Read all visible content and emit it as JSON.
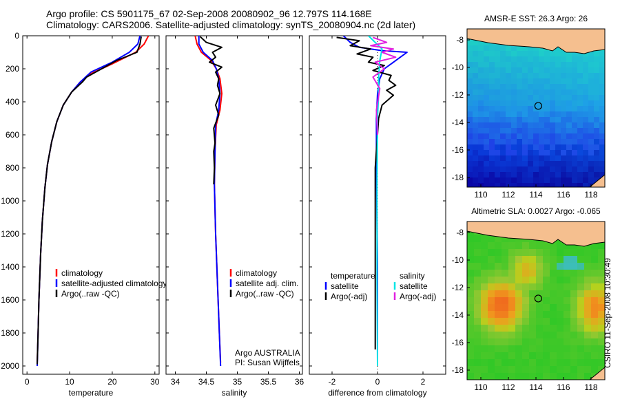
{
  "header": {
    "line1": "Argo profile: CS 5901175_67 02-Sep-2008 20080902_96 12.797S 114.168E",
    "line2": "Climatology: CARS2006. Satellite-adjusted climatology: synTS_20080904.nc (2d later)"
  },
  "colors": {
    "climatology": "#ff0000",
    "satellite": "#0000ff",
    "argo": "#000000",
    "salinity_sat": "#00e5e5",
    "salinity_argo": "#e020e0",
    "land": "#f5bf8f"
  },
  "chart_data": [
    {
      "type": "line",
      "name": "temperature-profile",
      "xlabel": "temperature",
      "ylabel": "",
      "xlim": [
        -1,
        31
      ],
      "ylim": [
        2050,
        0
      ],
      "xticks": [
        0,
        10,
        20,
        30
      ],
      "yticks": [
        0,
        200,
        400,
        600,
        800,
        1000,
        1200,
        1400,
        1600,
        1800,
        2000
      ],
      "series": [
        {
          "name": "climatology",
          "color": "#ff0000",
          "x": [
            28.5,
            27.5,
            25.5,
            20,
            15,
            12.5,
            10.5,
            8.5,
            7,
            5.8,
            4.8,
            4.2,
            3.6,
            3.2,
            2.8,
            2.6,
            2.4
          ],
          "y": [
            0,
            50,
            100,
            170,
            230,
            280,
            340,
            420,
            520,
            640,
            780,
            920,
            1120,
            1320,
            1600,
            1800,
            1980
          ]
        },
        {
          "name": "satellite-adjusted climatology",
          "color": "#0000ff",
          "x": [
            26.5,
            26,
            24,
            20,
            15,
            12.5,
            10.5,
            8.5,
            7,
            5.8,
            4.8,
            4.2,
            3.6,
            3.2,
            2.8,
            2.6,
            2.4
          ],
          "y": [
            0,
            50,
            100,
            160,
            220,
            280,
            340,
            420,
            520,
            640,
            780,
            920,
            1120,
            1320,
            1600,
            1800,
            2000
          ]
        },
        {
          "name": "Argo(..raw -QC)",
          "color": "#000000",
          "x": [
            26.8,
            26.5,
            25.8,
            21,
            17.5,
            14,
            13,
            10.5,
            8.5,
            7,
            5.8,
            4.8,
            4.2,
            3.6,
            3.2,
            2.8,
            2.6,
            2.4
          ],
          "y": [
            5,
            50,
            100,
            150,
            200,
            250,
            280,
            340,
            420,
            520,
            640,
            780,
            920,
            1120,
            1320,
            1600,
            1800,
            1990
          ]
        }
      ],
      "legend": {
        "entries": [
          "climatology",
          "satellite-adjusted climatology",
          "Argo(..raw -QC)"
        ],
        "position": "lower-right"
      }
    },
    {
      "type": "line",
      "name": "salinity-profile",
      "xlabel": "salinity",
      "ylabel": "",
      "xlim": [
        33.85,
        36.05
      ],
      "ylim": [
        2050,
        0
      ],
      "xticks": [
        34,
        34.5,
        35,
        35.5,
        36
      ],
      "xticklabels": [
        "34",
        "34.5",
        "35",
        "35.5",
        "36"
      ],
      "series": [
        {
          "name": "climatology",
          "color": "#ff0000",
          "x": [
            34.32,
            34.35,
            34.42,
            34.58,
            34.66,
            34.72,
            34.75,
            34.72,
            34.66,
            34.64,
            34.63,
            34.65,
            34.68,
            34.71,
            34.73
          ],
          "y": [
            0,
            50,
            100,
            150,
            200,
            260,
            350,
            450,
            540,
            700,
            900,
            1200,
            1500,
            1800,
            1980
          ]
        },
        {
          "name": "satellite adj. clim.",
          "color": "#0000ff",
          "x": [
            34.38,
            34.38,
            34.45,
            34.6,
            34.66,
            34.7,
            34.72,
            34.7,
            34.65,
            34.64,
            34.63,
            34.65,
            34.68,
            34.71,
            34.73
          ],
          "y": [
            0,
            50,
            100,
            150,
            200,
            260,
            350,
            450,
            540,
            700,
            900,
            1200,
            1500,
            1800,
            2000
          ]
        },
        {
          "name": "Argo(..raw -QC)",
          "color": "#000000",
          "x": [
            34.4,
            34.5,
            34.75,
            34.6,
            34.65,
            34.55,
            34.75,
            34.65,
            34.7,
            34.68,
            34.72,
            34.65,
            34.7,
            34.62,
            34.64,
            34.62,
            34.63,
            34.62
          ],
          "y": [
            5,
            40,
            70,
            100,
            130,
            160,
            190,
            220,
            260,
            300,
            350,
            420,
            480,
            560,
            650,
            700,
            800,
            900
          ]
        }
      ],
      "legend": {
        "entries": [
          "climatology",
          "satellite adj. clim.",
          "Argo(..raw -QC)"
        ],
        "position": "lower-right"
      },
      "annotations": [
        "Argo AUSTRALIA",
        "PI: Susan Wijffels"
      ]
    },
    {
      "type": "line",
      "name": "difference-profile",
      "xlabel": "difference from climatology",
      "ylabel": "",
      "xlim": [
        -3,
        3
      ],
      "ylim": [
        2050,
        0
      ],
      "xticks": [
        -2,
        0,
        2
      ],
      "series": [
        {
          "name": "temperature satellite",
          "color": "#0000ff",
          "x": [
            -1.5,
            -1.2,
            -0.8,
            0.2,
            1.3,
            1.0,
            0.7,
            0.3,
            0.1,
            0.0,
            -0.05,
            -0.05,
            0,
            0
          ],
          "y": [
            0,
            40,
            70,
            90,
            100,
            130,
            160,
            200,
            260,
            350,
            500,
            800,
            1400,
            2000
          ]
        },
        {
          "name": "temperature Argo(-adj)",
          "color": "#000000",
          "x": [
            -1.8,
            -0.8,
            -1.2,
            -0.3,
            -0.9,
            -0.2,
            -0.4,
            0.3,
            -0.2,
            0.6,
            0.5,
            0.8,
            0.4,
            0.7,
            0.2,
            0.05,
            -0.1,
            -0.1,
            -0.1
          ],
          "y": [
            10,
            30,
            60,
            80,
            110,
            130,
            160,
            180,
            210,
            240,
            270,
            300,
            330,
            360,
            420,
            500,
            800,
            1200,
            1900
          ]
        },
        {
          "name": "salinity satellite",
          "color": "#00e5e5",
          "x": [
            -0.4,
            -0.1,
            0.2,
            0.1,
            0.05,
            0.05,
            0.0,
            -0.02,
            -0.02,
            0.0
          ],
          "y": [
            0,
            40,
            80,
            150,
            250,
            350,
            500,
            900,
            1500,
            2000
          ]
        },
        {
          "name": "salinity Argo(-adj)",
          "color": "#e020e0",
          "x": [
            -0.2,
            0.4,
            -0.3,
            0.7,
            0.2,
            0.8,
            -0.1,
            0.3,
            -0.2,
            0.1,
            -0.05,
            0.0
          ],
          "y": [
            10,
            40,
            60,
            80,
            100,
            130,
            160,
            200,
            250,
            320,
            450,
            600
          ]
        }
      ],
      "legend": {
        "entries": [
          "temperature",
          "satellite",
          "Argo(-adj)",
          "salinity",
          "satellite",
          "Argo(-adj)"
        ],
        "position": "lower-center"
      }
    },
    {
      "type": "heatmap",
      "name": "sst-map",
      "title": "AMSR-E SST: 26.3 Argo: 26",
      "xlim": [
        109,
        119
      ],
      "ylim": [
        -18.7,
        -7.2
      ],
      "xticks": [
        110,
        112,
        114,
        116,
        118
      ],
      "yticks": [
        -8,
        -10,
        -12,
        -14,
        -16,
        -18
      ],
      "marker": {
        "lon": 114.168,
        "lat": -12.797
      },
      "field": "sea surface temperature"
    },
    {
      "type": "heatmap",
      "name": "sla-map",
      "title": "Altimetric SLA: 0.0027 Argo: -0.065",
      "xlim": [
        109,
        119
      ],
      "ylim": [
        -18.7,
        -7.2
      ],
      "xticks": [
        110,
        112,
        114,
        116,
        118
      ],
      "yticks": [
        -8,
        -10,
        -12,
        -14,
        -16,
        -18
      ],
      "marker": {
        "lon": 114.168,
        "lat": -12.797
      },
      "field": "sea level anomaly"
    }
  ],
  "footer": {
    "credit": "CSIRO 11-Sep-2008 10:30:49"
  }
}
